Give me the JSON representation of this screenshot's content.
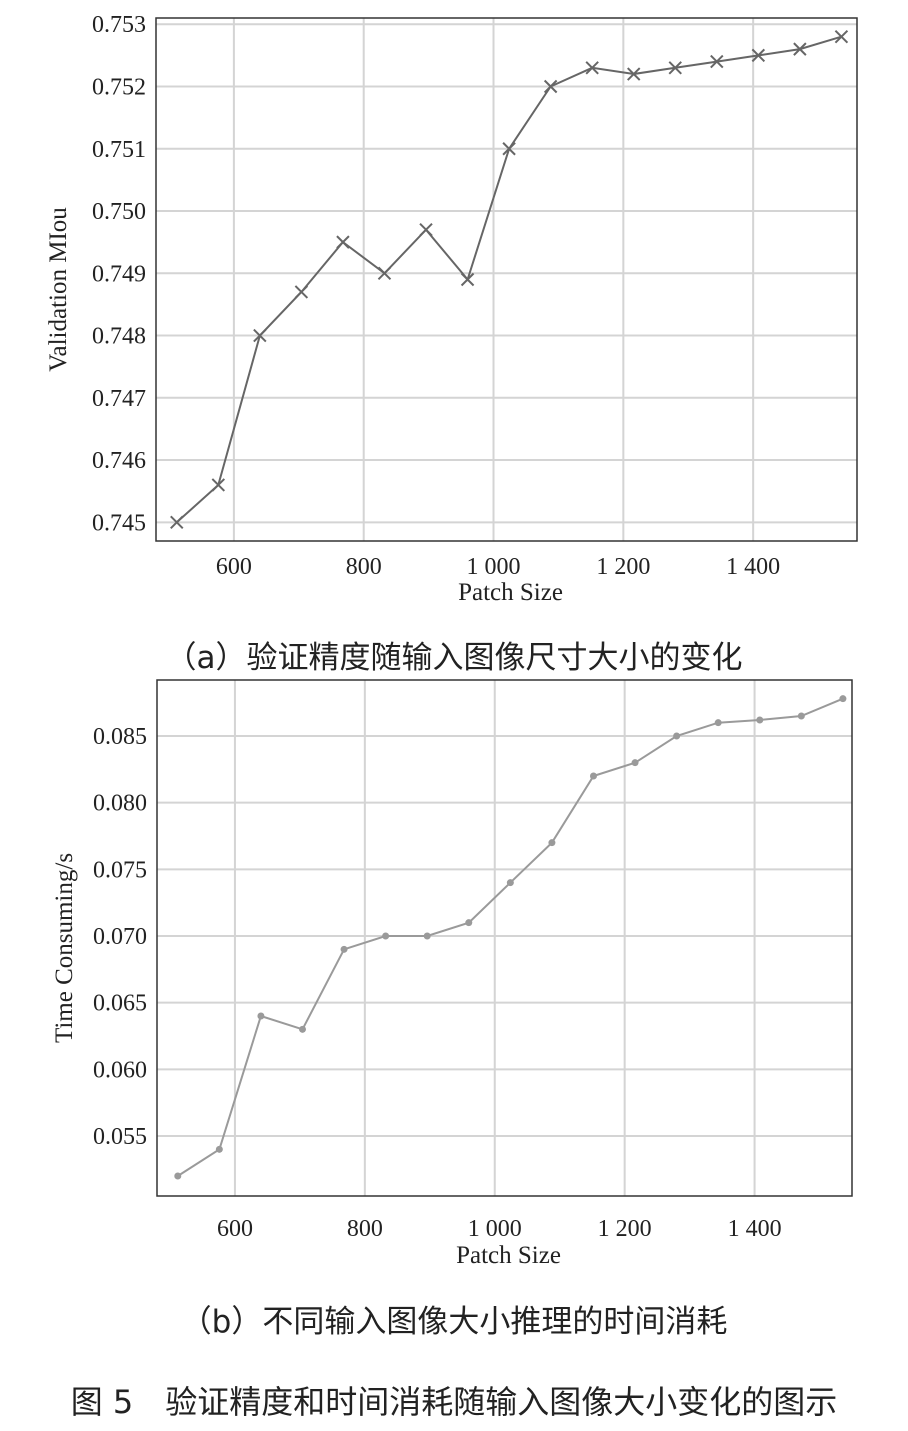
{
  "chart_data": [
    {
      "type": "line",
      "title": "",
      "caption": "（a）验证精度随输入图像尺寸大小的变化",
      "xlabel": "Patch Size",
      "ylabel": "Validation MIou",
      "xlim": [
        480,
        1560
      ],
      "ylim": [
        0.7447,
        0.7531
      ],
      "xticks": [
        600,
        800,
        1000,
        1200,
        1400
      ],
      "xtick_labels": [
        "600",
        "800",
        "1 000",
        "1 200",
        "1 400"
      ],
      "yticks": [
        0.745,
        0.746,
        0.747,
        0.748,
        0.749,
        0.75,
        0.751,
        0.752,
        0.753
      ],
      "ytick_labels": [
        "0.745",
        "0.746",
        "0.747",
        "0.748",
        "0.749",
        "0.750",
        "0.751",
        "0.752",
        "0.753"
      ],
      "grid": true,
      "marker": "x",
      "color": "#666666",
      "x": [
        512,
        576,
        640,
        704,
        768,
        832,
        896,
        960,
        1024,
        1088,
        1152,
        1216,
        1280,
        1344,
        1408,
        1472,
        1536
      ],
      "series": [
        {
          "values": [
            0.745,
            0.7456,
            0.748,
            0.7487,
            0.7495,
            0.749,
            0.7497,
            0.7489,
            0.751,
            0.752,
            0.7523,
            0.7522,
            0.7523,
            0.7524,
            0.7525,
            0.7526,
            0.7528
          ]
        }
      ]
    },
    {
      "type": "line",
      "title": "",
      "caption": "（b）不同输入图像大小推理的时间消耗",
      "xlabel": "Patch Size",
      "ylabel": "Time Consuming/s",
      "xlim": [
        480,
        1550
      ],
      "ylim": [
        0.0505,
        0.0892
      ],
      "xticks": [
        600,
        800,
        1000,
        1200,
        1400
      ],
      "xtick_labels": [
        "600",
        "800",
        "1 000",
        "1 200",
        "1 400"
      ],
      "yticks": [
        0.055,
        0.06,
        0.065,
        0.07,
        0.075,
        0.08,
        0.085
      ],
      "ytick_labels": [
        "0.055",
        "0.060",
        "0.065",
        "0.070",
        "0.075",
        "0.080",
        "0.085"
      ],
      "grid": true,
      "marker": "dot",
      "color": "#9a9a9a",
      "x": [
        512,
        576,
        640,
        704,
        768,
        832,
        896,
        960,
        1024,
        1088,
        1152,
        1216,
        1280,
        1344,
        1408,
        1472,
        1536
      ],
      "series": [
        {
          "values": [
            0.052,
            0.054,
            0.064,
            0.063,
            0.069,
            0.07,
            0.07,
            0.071,
            0.074,
            0.077,
            0.082,
            0.083,
            0.085,
            0.086,
            0.0862,
            0.0865,
            0.0878
          ]
        }
      ]
    }
  ],
  "figure_title": "图 5　验证精度和时间消耗随输入图像大小变化的图示",
  "colors": {
    "grid": "#d4d4d4",
    "axis": "#333333"
  }
}
